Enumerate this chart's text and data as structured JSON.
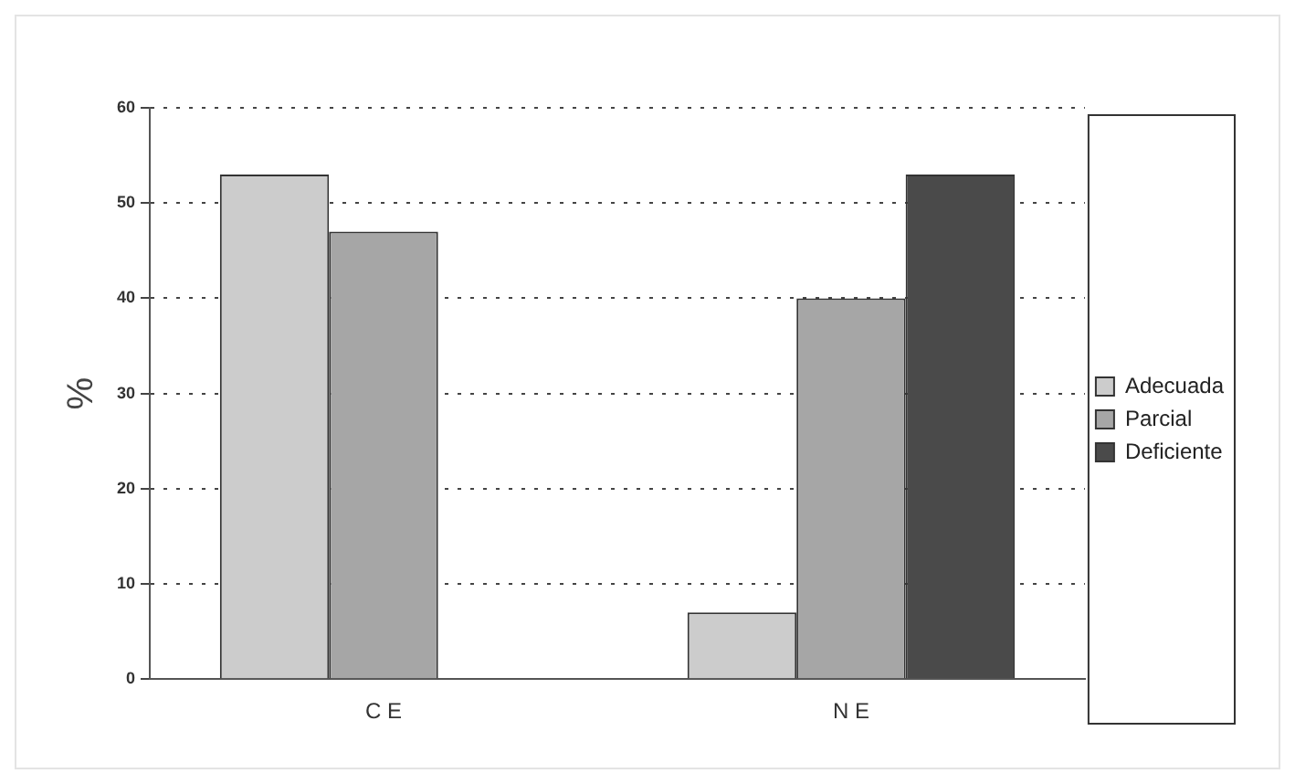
{
  "chart_data": {
    "type": "bar",
    "ylabel": "%",
    "categories": [
      "C E",
      "N E"
    ],
    "series": [
      {
        "name": "Adecuada",
        "color": "#cccccc",
        "values": [
          53,
          7
        ]
      },
      {
        "name": "Parcial",
        "color": "#a6a6a6",
        "values": [
          47,
          40
        ]
      },
      {
        "name": "Deficiente",
        "color": "#4a4a4a",
        "values": [
          0,
          53
        ]
      }
    ],
    "ylim": [
      0,
      60
    ],
    "yticks": [
      0,
      10,
      20,
      30,
      40,
      50,
      60
    ],
    "grid": "y",
    "legend": "right"
  }
}
